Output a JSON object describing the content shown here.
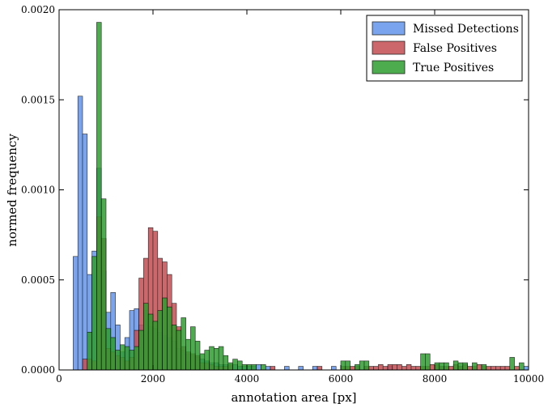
{
  "chart_data": {
    "type": "bar",
    "subtype": "histogram",
    "xlabel": "annotation area [px]",
    "ylabel": "normed frequency",
    "xlim": [
      0,
      10000
    ],
    "ylim": [
      0,
      0.002
    ],
    "x_ticks": [
      0,
      2000,
      4000,
      6000,
      8000,
      10000
    ],
    "y_ticks": [
      0.0,
      0.0005,
      0.001,
      0.0015,
      0.002
    ],
    "x_tick_labels": [
      "0",
      "2000",
      "4000",
      "6000",
      "8000",
      "10000"
    ],
    "y_tick_labels": [
      "0.0000",
      "0.0005",
      "0.0010",
      "0.0015",
      "0.0020"
    ],
    "grid": false,
    "legend_position": "top-right",
    "bin_width": 100,
    "series": [
      {
        "name": "Missed Detections",
        "color": "#6495ED",
        "bins": [
          [
            300,
            0.00063
          ],
          [
            400,
            0.00152
          ],
          [
            500,
            0.00131
          ],
          [
            600,
            0.00053
          ],
          [
            700,
            0.00066
          ],
          [
            800,
            0.00112
          ],
          [
            900,
            0.00055
          ],
          [
            1000,
            0.00032
          ],
          [
            1100,
            0.00043
          ],
          [
            1200,
            0.00025
          ],
          [
            1300,
            0.0001
          ],
          [
            1400,
            0.00018
          ],
          [
            1500,
            0.00033
          ],
          [
            1600,
            0.00034
          ],
          [
            1700,
            0.00025
          ],
          [
            1800,
            0.00033
          ],
          [
            1900,
            0.00024
          ],
          [
            2000,
            0.00023
          ],
          [
            2100,
            0.00021
          ],
          [
            2200,
            0.00019
          ],
          [
            2300,
            0.00018
          ],
          [
            2400,
            0.00016
          ],
          [
            2500,
            0.00012
          ],
          [
            2600,
            0.00011
          ],
          [
            2700,
            9e-05
          ],
          [
            2800,
            8e-05
          ],
          [
            2900,
            7e-05
          ],
          [
            3000,
            6e-05
          ],
          [
            3100,
            5e-05
          ],
          [
            3200,
            4e-05
          ],
          [
            3300,
            4e-05
          ],
          [
            3400,
            3e-05
          ],
          [
            3500,
            3e-05
          ],
          [
            3600,
            2e-05
          ],
          [
            3700,
            3e-05
          ],
          [
            3800,
            2e-05
          ],
          [
            3900,
            2e-05
          ],
          [
            4000,
            2e-05
          ],
          [
            4100,
            2e-05
          ],
          [
            4200,
            3e-05
          ],
          [
            4400,
            2e-05
          ],
          [
            4800,
            2e-05
          ],
          [
            5100,
            2e-05
          ],
          [
            5400,
            2e-05
          ],
          [
            5800,
            2e-05
          ],
          [
            7000,
            2e-05
          ],
          [
            9900,
            2e-05
          ]
        ]
      },
      {
        "name": "False Positives",
        "color": "#C44E52",
        "bins": [
          [
            500,
            6e-05
          ],
          [
            600,
            6e-05
          ],
          [
            700,
            5e-05
          ],
          [
            800,
            0.00085
          ],
          [
            900,
            0.00073
          ],
          [
            1000,
            0.00012
          ],
          [
            1100,
            0.0001
          ],
          [
            1200,
            8e-05
          ],
          [
            1300,
            7e-05
          ],
          [
            1400,
            5e-05
          ],
          [
            1500,
            7e-05
          ],
          [
            1600,
            0.00022
          ],
          [
            1700,
            0.00051
          ],
          [
            1800,
            0.00062
          ],
          [
            1900,
            0.00079
          ],
          [
            2000,
            0.00077
          ],
          [
            2100,
            0.00062
          ],
          [
            2200,
            0.0006
          ],
          [
            2300,
            0.00053
          ],
          [
            2400,
            0.00037
          ],
          [
            2500,
            0.00024
          ],
          [
            2600,
            0.00013
          ],
          [
            2700,
            0.0001
          ],
          [
            2800,
            9e-05
          ],
          [
            2900,
            8e-05
          ],
          [
            3000,
            4e-05
          ],
          [
            3100,
            4e-05
          ],
          [
            3200,
            3e-05
          ],
          [
            3300,
            2e-05
          ],
          [
            3400,
            2e-05
          ],
          [
            3500,
            2e-05
          ],
          [
            3600,
            3e-05
          ],
          [
            4500,
            2e-05
          ],
          [
            5500,
            2e-05
          ],
          [
            6000,
            2e-05
          ],
          [
            6100,
            2e-05
          ],
          [
            6200,
            2e-05
          ],
          [
            6300,
            2e-05
          ],
          [
            6500,
            2e-05
          ],
          [
            6600,
            2e-05
          ],
          [
            6700,
            2e-05
          ],
          [
            6800,
            3e-05
          ],
          [
            6900,
            2e-05
          ],
          [
            7000,
            3e-05
          ],
          [
            7100,
            3e-05
          ],
          [
            7200,
            3e-05
          ],
          [
            7300,
            2e-05
          ],
          [
            7400,
            3e-05
          ],
          [
            7500,
            2e-05
          ],
          [
            7600,
            2e-05
          ],
          [
            7700,
            2e-05
          ],
          [
            7800,
            2e-05
          ],
          [
            7900,
            3e-05
          ],
          [
            8000,
            3e-05
          ],
          [
            8100,
            2e-05
          ],
          [
            8200,
            2e-05
          ],
          [
            8300,
            2e-05
          ],
          [
            8400,
            3e-05
          ],
          [
            8500,
            2e-05
          ],
          [
            8600,
            3e-05
          ],
          [
            8700,
            2e-05
          ],
          [
            8800,
            2e-05
          ],
          [
            8900,
            3e-05
          ],
          [
            9000,
            2e-05
          ],
          [
            9100,
            2e-05
          ],
          [
            9200,
            2e-05
          ],
          [
            9300,
            2e-05
          ],
          [
            9400,
            2e-05
          ],
          [
            9500,
            2e-05
          ],
          [
            9700,
            2e-05
          ]
        ]
      },
      {
        "name": "True Positives",
        "color": "#2E9E2E",
        "bins": [
          [
            600,
            0.00021
          ],
          [
            700,
            0.00063
          ],
          [
            800,
            0.00193
          ],
          [
            900,
            0.00095
          ],
          [
            1000,
            0.00023
          ],
          [
            1100,
            0.00018
          ],
          [
            1200,
            0.00011
          ],
          [
            1300,
            0.00014
          ],
          [
            1400,
            0.00013
          ],
          [
            1500,
            0.00011
          ],
          [
            1600,
            0.00013
          ],
          [
            1700,
            0.00022
          ],
          [
            1800,
            0.00037
          ],
          [
            1900,
            0.00031
          ],
          [
            2000,
            0.00027
          ],
          [
            2100,
            0.00033
          ],
          [
            2200,
            0.0004
          ],
          [
            2300,
            0.00035
          ],
          [
            2400,
            0.00025
          ],
          [
            2500,
            0.00022
          ],
          [
            2600,
            0.00029
          ],
          [
            2700,
            0.00017
          ],
          [
            2800,
            0.00024
          ],
          [
            2900,
            0.00016
          ],
          [
            3000,
            9e-05
          ],
          [
            3100,
            0.00011
          ],
          [
            3200,
            0.00013
          ],
          [
            3300,
            0.00012
          ],
          [
            3400,
            0.00013
          ],
          [
            3500,
            8e-05
          ],
          [
            3600,
            4e-05
          ],
          [
            3700,
            6e-05
          ],
          [
            3800,
            5e-05
          ],
          [
            3900,
            3e-05
          ],
          [
            4000,
            3e-05
          ],
          [
            4100,
            3e-05
          ],
          [
            4300,
            3e-05
          ],
          [
            6000,
            5e-05
          ],
          [
            6100,
            5e-05
          ],
          [
            6300,
            3e-05
          ],
          [
            6400,
            5e-05
          ],
          [
            6500,
            5e-05
          ],
          [
            7700,
            9e-05
          ],
          [
            7800,
            9e-05
          ],
          [
            8000,
            4e-05
          ],
          [
            8100,
            4e-05
          ],
          [
            8200,
            4e-05
          ],
          [
            8400,
            5e-05
          ],
          [
            8500,
            4e-05
          ],
          [
            8600,
            4e-05
          ],
          [
            8800,
            4e-05
          ],
          [
            9000,
            3e-05
          ],
          [
            9600,
            7e-05
          ],
          [
            9800,
            4e-05
          ]
        ]
      }
    ]
  }
}
